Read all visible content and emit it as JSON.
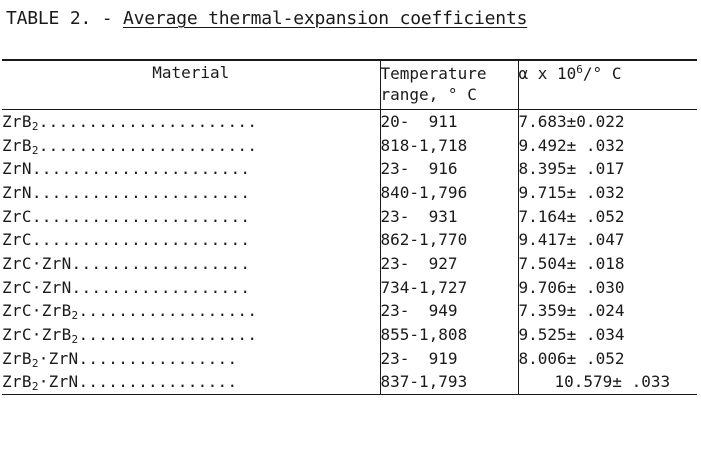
{
  "title": {
    "prefix": "TABLE 2. - ",
    "text": "Average thermal-expansion coefficients"
  },
  "headers": {
    "material": "Material",
    "temperature_line1": "Temperature",
    "temperature_line2": "range, ° C",
    "coef_prefix": "α x 10",
    "coef_exp": "6",
    "coef_suffix": "/° C"
  },
  "rows": [
    {
      "material": "ZrB",
      "sub": "2",
      "tail": "",
      "dots": "......................",
      "range": "20-  911",
      "coef": "7.683±0.022"
    },
    {
      "material": "ZrB",
      "sub": "2",
      "tail": "",
      "dots": "......................",
      "range": "818-1,718",
      "coef": "9.492± .032"
    },
    {
      "material": "ZrN",
      "sub": "",
      "tail": "",
      "dots": "......................",
      "range": "23-  916",
      "coef": "8.395± .017"
    },
    {
      "material": "ZrN",
      "sub": "",
      "tail": "",
      "dots": "......................",
      "range": "840-1,796",
      "coef": "9.715± .032"
    },
    {
      "material": "ZrC",
      "sub": "",
      "tail": "",
      "dots": "......................",
      "range": "23-  931",
      "coef": "7.164± .052"
    },
    {
      "material": "ZrC",
      "sub": "",
      "tail": "",
      "dots": "......................",
      "range": "862-1,770",
      "coef": "9.417± .047"
    },
    {
      "material": "ZrC·ZrN",
      "sub": "",
      "tail": "",
      "dots": "..................",
      "range": "23-  927",
      "coef": "7.504± .018"
    },
    {
      "material": "ZrC·ZrN",
      "sub": "",
      "tail": "",
      "dots": "..................",
      "range": "734-1,727",
      "coef": "9.706± .030"
    },
    {
      "material": "ZrC·ZrB",
      "sub": "2",
      "tail": "",
      "dots": "..................",
      "range": "23-  949",
      "coef": "7.359± .024"
    },
    {
      "material": "ZrC·ZrB",
      "sub": "2",
      "tail": "",
      "dots": "..................",
      "range": "855-1,808",
      "coef": "9.525± .034"
    },
    {
      "material": "ZrB",
      "sub": "2",
      "tail": "·ZrN",
      "dots": "................",
      "range": "23-  919",
      "coef": "8.006± .052"
    },
    {
      "material": "ZrB",
      "sub": "2",
      "tail": "·ZrN",
      "dots": "................",
      "range": "837-1,793",
      "coef": "10.579± .033"
    }
  ]
}
